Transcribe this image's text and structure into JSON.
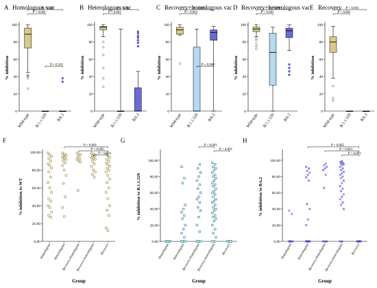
{
  "chart_data": [
    {
      "type": "box",
      "letter": "A",
      "title": "Homologous vac",
      "ylabel": "% inhibition",
      "ylim": [
        0,
        100
      ],
      "yticks": [
        0,
        20,
        40,
        60,
        80,
        100
      ],
      "categories": [
        "Wild-type",
        "B.1.1.529",
        "BA.2"
      ],
      "boxes": [
        {
          "min": 45,
          "q1": 73,
          "median": 89,
          "q3": 96,
          "max": 100,
          "outliers": [
            26,
            38,
            40,
            41,
            42
          ],
          "color": "#d8cb8a"
        },
        {
          "min": 0,
          "q1": 0,
          "median": 0,
          "q3": 0,
          "max": 0,
          "outliers": [],
          "color": "#b6d8f0"
        },
        {
          "min": 0,
          "q1": 0,
          "median": 0,
          "q3": 0,
          "max": 0,
          "outliers": [
            34,
            38
          ],
          "color": "#6b6bd6"
        }
      ],
      "pvalues": [
        {
          "label": "P < 0.001",
          "from": 0,
          "to": 2
        },
        {
          "label": "P < 0.001",
          "from": 0,
          "to": 1
        },
        {
          "label": "P = 0.161",
          "from": 1,
          "to": 2
        }
      ]
    },
    {
      "type": "box",
      "letter": "B",
      "title": "Heterologous vac",
      "ylabel": "% inhibition",
      "ylim": [
        0,
        100
      ],
      "yticks": [
        0,
        20,
        40,
        60,
        80,
        100
      ],
      "categories": [
        "Wild-type",
        "B.1.1.529",
        "BA.2"
      ],
      "boxes": [
        {
          "min": 86,
          "q1": 94,
          "median": 97,
          "q3": 98,
          "max": 100,
          "outliers": [
            80,
            74,
            65,
            50,
            38,
            28
          ],
          "color": "#d8cb8a"
        },
        {
          "min": 0,
          "q1": 0,
          "median": 0,
          "q3": 0,
          "max": 95,
          "outliers": [],
          "color": "#b6d8f0"
        },
        {
          "min": 0,
          "q1": 0,
          "median": 0,
          "q3": 27,
          "max": 46,
          "outliers": [
            75,
            79,
            82,
            85,
            87,
            90,
            92
          ],
          "color": "#6b6bd6"
        }
      ],
      "pvalues": [
        {
          "label": "P < 0.001",
          "from": 0,
          "to": 2
        },
        {
          "label": "P < 0.001",
          "from": 0,
          "to": 1
        }
      ]
    },
    {
      "type": "box",
      "letter": "C",
      "title": "Recovery+homologous vac",
      "ylabel": "% inhibition",
      "ylim": [
        0,
        100
      ],
      "yticks": [
        0,
        20,
        40,
        60,
        80,
        100
      ],
      "categories": [
        "Wild-type",
        "B.1.1.529",
        "BA.2"
      ],
      "boxes": [
        {
          "min": 88,
          "q1": 89,
          "median": 94,
          "q3": 97,
          "max": 100,
          "outliers": [
            55
          ],
          "color": "#d8cb8a"
        },
        {
          "min": 0,
          "q1": 0,
          "median": 0,
          "q3": 74,
          "max": 95,
          "outliers": [],
          "color": "#b6d8f0"
        },
        {
          "min": 0,
          "q1": 82,
          "median": 91,
          "q3": 94,
          "max": 98,
          "outliers": [],
          "color": "#6b6bd6"
        }
      ],
      "pvalues": [
        {
          "label": "P < 0.001",
          "from": 0,
          "to": 2
        },
        {
          "label": "P < 0.001",
          "from": 0,
          "to": 1
        },
        {
          "label": "P = 0.040",
          "from": 1,
          "to": 2
        }
      ]
    },
    {
      "type": "box",
      "letter": "D",
      "title": "Recovery+heterologous vac",
      "ylabel": "% inhibition",
      "ylim": [
        0,
        100
      ],
      "yticks": [
        0,
        20,
        40,
        60,
        80,
        100
      ],
      "categories": [
        "Wild-type",
        "B.1.1.529",
        "BA.2"
      ],
      "boxes": [
        {
          "min": 86,
          "q1": 92,
          "median": 95,
          "q3": 97,
          "max": 100,
          "outliers": [
            72,
            75,
            78,
            82,
            84
          ],
          "color": "#d8cb8a"
        },
        {
          "min": 0,
          "q1": 30,
          "median": 68,
          "q3": 90,
          "max": 97,
          "outliers": [],
          "color": "#b6d8f0"
        },
        {
          "min": 70,
          "q1": 85,
          "median": 93,
          "q3": 96,
          "max": 100,
          "outliers": [
            42,
            46,
            50,
            54
          ],
          "color": "#6b6bd6"
        }
      ],
      "pvalues": [
        {
          "label": "P < 0.001",
          "from": 0,
          "to": 2
        },
        {
          "label": "P < 0.001",
          "from": 0,
          "to": 1
        }
      ]
    },
    {
      "type": "box",
      "letter": "E",
      "title": "Recovery",
      "ylabel": "% inhibition",
      "ylim": [
        0,
        100
      ],
      "yticks": [
        0,
        20,
        40,
        60,
        80,
        100
      ],
      "categories": [
        "Wild-type",
        "B.1.1.529",
        "BA.2"
      ],
      "boxes": [
        {
          "min": 38,
          "q1": 68,
          "median": 80,
          "q3": 86,
          "max": 98,
          "outliers": [
            29,
            15,
            12
          ],
          "color": "#d8cb8a"
        },
        {
          "min": 0,
          "q1": 0,
          "median": 0,
          "q3": 0,
          "max": 0,
          "outliers": [],
          "color": "#b6d8f0"
        },
        {
          "min": 0,
          "q1": 0,
          "median": 0,
          "q3": 0,
          "max": 0,
          "outliers": [],
          "color": "#6b6bd6"
        }
      ],
      "pvalues": [
        {
          "label": "P < 0.001",
          "from": 0,
          "to": 2
        },
        {
          "label": "P < 0.001",
          "from": 0,
          "to": 1
        }
      ]
    },
    {
      "type": "scatter",
      "letter": "F",
      "ylabel": "% inhibition to WT",
      "xlabel": "Group",
      "ylim": [
        0,
        100
      ],
      "yticks": [
        "0.00",
        "20.00",
        "40.00",
        "60.00",
        "80.00",
        "100.00"
      ],
      "categories": [
        "Homologous",
        "Heterologous",
        "Recovery-homologous",
        "Recovery-heterologous",
        "Recovery"
      ],
      "marker": "circle",
      "color": "#8c7a2a",
      "points": [
        [
          99,
          97,
          95,
          93,
          90,
          87,
          85,
          82,
          78,
          72,
          66,
          60,
          55,
          48,
          45,
          40,
          38,
          33,
          29,
          27
        ],
        [
          99,
          98,
          97,
          96,
          95,
          94,
          93,
          92,
          90,
          88,
          85,
          80,
          74,
          65,
          50,
          38,
          28
        ],
        [
          99,
          98,
          97,
          95,
          93,
          92,
          90,
          89,
          57
        ],
        [
          99,
          98,
          97,
          96,
          95,
          94,
          93,
          92,
          90,
          87,
          84,
          80,
          78,
          75,
          72
        ],
        [
          98,
          96,
          94,
          92,
          90,
          88,
          86,
          84,
          82,
          80,
          78,
          74,
          70,
          66,
          60,
          55,
          48,
          40,
          35,
          29,
          15,
          12
        ]
      ],
      "pvalues": [
        {
          "label": "P < 0.001",
          "from": 1,
          "to": 4
        },
        {
          "label": "P = 0.005",
          "from": 2,
          "to": 4
        },
        {
          "label": "P < 0.001",
          "from": 3,
          "to": 4
        }
      ]
    },
    {
      "type": "scatter",
      "letter": "G",
      "ylabel": "% inhibition to B.1.1.529",
      "xlabel": "Group",
      "ylim": [
        0,
        110
      ],
      "yticks": [
        "0.00",
        "20.00",
        "40.00",
        "60.00",
        "80.00",
        "100.00"
      ],
      "categories": [
        "Homologous",
        "Heterologous",
        "Recovery-homologous",
        "Recovery-heterologous",
        "Recovery"
      ],
      "marker": "square",
      "color": "#2a7a8c",
      "points": [
        [
          0,
          0,
          0,
          0,
          0,
          0,
          0
        ],
        [
          0,
          0,
          0,
          0,
          5,
          10,
          15,
          20,
          28,
          32,
          36,
          40,
          45,
          72,
          78,
          92
        ],
        [
          0,
          0,
          0,
          0,
          12,
          20,
          30,
          38,
          42,
          48,
          52,
          55,
          60,
          65,
          70,
          75,
          80,
          85,
          90,
          95
        ],
        [
          0,
          0,
          5,
          10,
          15,
          20,
          25,
          28,
          30,
          32,
          35,
          38,
          40,
          42,
          45,
          48,
          50,
          52,
          55,
          58,
          60,
          62,
          65,
          68,
          70,
          72,
          75,
          78,
          80,
          82,
          85,
          88,
          90,
          92,
          95,
          97
        ],
        [
          0,
          0,
          0,
          0,
          0,
          0
        ]
      ],
      "pvalues": [
        {
          "label": "P < 0.001",
          "from": 2,
          "to": 3
        },
        {
          "label": "P < 0.001",
          "from": 3,
          "to": 4
        }
      ]
    },
    {
      "type": "scatter",
      "letter": "H",
      "ylabel": "% inhibition to BA.2",
      "xlabel": "Group",
      "ylim": [
        0,
        110
      ],
      "yticks": [
        "0.00",
        "20.00",
        "40.00",
        "60.00",
        "80.00",
        "100.00"
      ],
      "categories": [
        "Homologous",
        "Heterologous",
        "Recovery-homologous",
        "Recovery-heterologous",
        "Recovery"
      ],
      "marker": "x",
      "color": "#3a3ad0",
      "points": [
        [
          0,
          0,
          0,
          0,
          34,
          38
        ],
        [
          0,
          0,
          0,
          0,
          0,
          20,
          27,
          40,
          46,
          75,
          79,
          82,
          85,
          87,
          90,
          92
        ],
        [
          0,
          0,
          0,
          66,
          82,
          88,
          90,
          92,
          94,
          96
        ],
        [
          0,
          0,
          40,
          45,
          48,
          52,
          55,
          58,
          62,
          65,
          68,
          72,
          75,
          78,
          80,
          82,
          84,
          86,
          88,
          90,
          92,
          94,
          95,
          96,
          97,
          98,
          99
        ],
        [
          0,
          0,
          0,
          0,
          0
        ]
      ],
      "pvalues": [
        {
          "label": "P = 0.005",
          "from": 1,
          "to": 4
        },
        {
          "label": "P < 0.001",
          "from": 2,
          "to": 4
        },
        {
          "label": "P < 0.001",
          "from": 3,
          "to": 4
        }
      ]
    }
  ]
}
